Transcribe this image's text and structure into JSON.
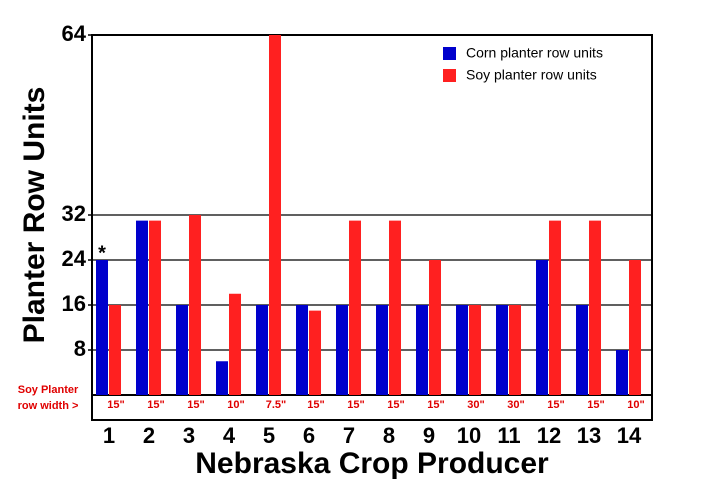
{
  "chart_data": {
    "type": "bar",
    "x_label": "Nebraska Crop Producer",
    "y_label": "Planter Row Units",
    "categories": [
      "1",
      "2",
      "3",
      "4",
      "5",
      "6",
      "7",
      "8",
      "9",
      "10",
      "11",
      "12",
      "13",
      "14"
    ],
    "series": [
      {
        "name": "Corn planter row units",
        "color": "#0000cc",
        "values": [
          24,
          31,
          16,
          6,
          16,
          16,
          16,
          16,
          16,
          16,
          16,
          24,
          16,
          8
        ]
      },
      {
        "name": "Soy planter row units",
        "color": "#ff2020",
        "values": [
          16,
          31,
          32,
          18,
          64,
          15,
          31,
          31,
          24,
          16,
          16,
          31,
          31,
          24
        ]
      }
    ],
    "row_width_label": [
      "Soy Planter",
      "row width >"
    ],
    "row_widths": [
      "15\"",
      "15\"",
      "15\"",
      "10\"",
      "7.5\"",
      "15\"",
      "15\"",
      "15\"",
      "15\"",
      "30\"",
      "30\"",
      "15\"",
      "15\"",
      "10\""
    ],
    "annotation": "*",
    "ylim": [
      0,
      64
    ],
    "yticks": [
      8,
      16,
      24,
      32,
      64
    ],
    "grid": true,
    "legend": "upper right"
  }
}
